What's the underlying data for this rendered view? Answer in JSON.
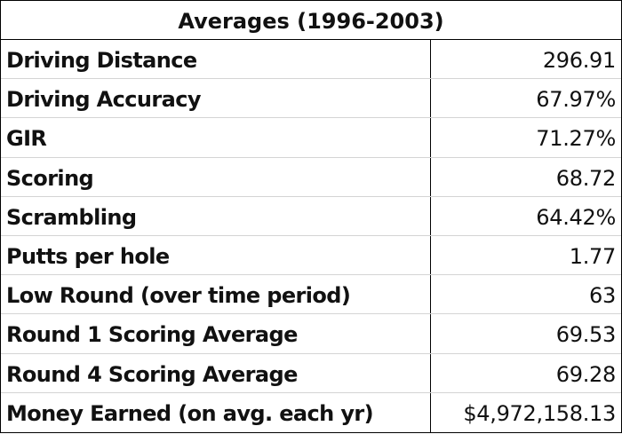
{
  "table": {
    "title": "Averages (1996-2003)",
    "rows": [
      [
        "Driving Distance",
        "296.91"
      ],
      [
        "Driving Accuracy",
        "67.97%"
      ],
      [
        "GIR",
        "71.27%"
      ],
      [
        "Scoring",
        "68.72"
      ],
      [
        "Scrambling",
        "64.42%"
      ],
      [
        "Putts per hole",
        "1.77"
      ],
      [
        "Low Round (over time period)",
        "63"
      ],
      [
        "Round 1 Scoring Average",
        "69.53"
      ],
      [
        "Round 4 Scoring Average",
        "69.28"
      ],
      [
        "Money Earned (on avg. each yr)",
        "$4,972,158.13"
      ]
    ]
  }
}
